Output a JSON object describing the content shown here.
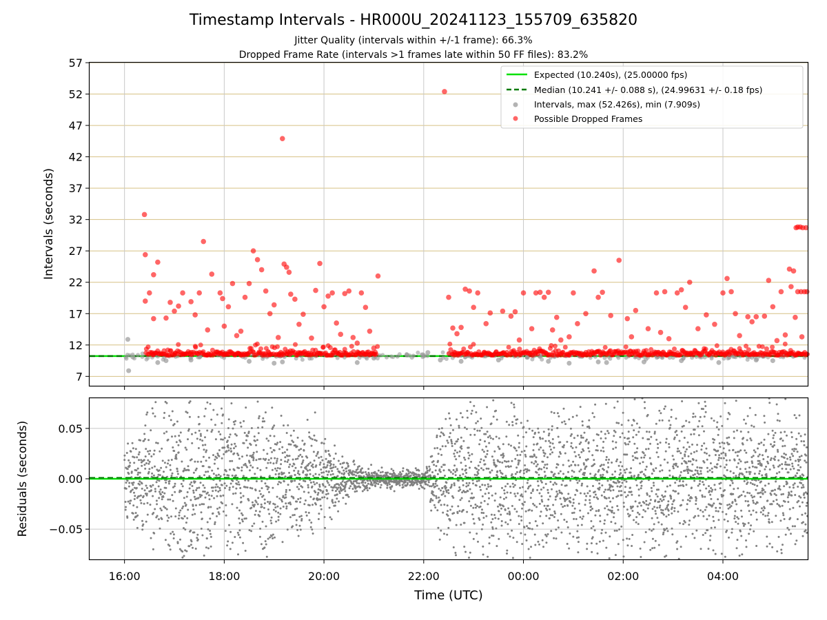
{
  "title": "Timestamp Intervals - HR000U_20241123_155709_635820",
  "subtitle_1": "Jitter Quality (intervals within +/-1 frame): 66.3%",
  "subtitle_2": "Dropped Frame Rate (intervals >1 frames late within 50 FF files): 83.2%",
  "colors": {
    "expected": "#00e000",
    "median": "#007a00",
    "intervals": "#999999",
    "dropped": "#ff0000",
    "residuals": "#808080",
    "hgrid_top": "#d6c084",
    "grid": "#c8c8c8"
  },
  "chart_data": [
    {
      "type": "scatter",
      "name": "top-panel",
      "ylabel": "Intervals (seconds)",
      "ylim": [
        5.5,
        57
      ],
      "yticks": [
        "7",
        "12",
        "17",
        "22",
        "27",
        "32",
        "37",
        "42",
        "47",
        "52",
        "57"
      ],
      "xlim": [
        "15:18",
        "05:42"
      ],
      "xticks": [
        "16:00",
        "18:00",
        "20:00",
        "22:00",
        "00:00",
        "02:00",
        "04:00"
      ],
      "grid": true,
      "legend_position": "top-right",
      "legend": [
        "Expected (10.240s), (25.00000 fps)",
        "Median (10.241 +/- 0.088 s), (24.99631 +/- 0.18 fps)",
        "Intervals, max (52.426s), min (7.909s)",
        "Possible Dropped Frames"
      ],
      "expected_interval": 10.24,
      "median_interval": 10.241,
      "interval_points": [
        [
          "16:04",
          12.9
        ],
        [
          "16:05",
          7.9
        ],
        [
          "16:10",
          10.1
        ],
        [
          "16:40",
          9.2
        ],
        [
          "16:50",
          9.5
        ],
        [
          "17:20",
          9.6
        ],
        [
          "18:30",
          9.4
        ],
        [
          "19:00",
          9.1
        ],
        [
          "19:10",
          9.3
        ],
        [
          "20:40",
          9.2
        ],
        [
          "21:00",
          9.9
        ],
        [
          "21:40",
          10.4
        ],
        [
          "22:05",
          10.8
        ],
        [
          "22:20",
          9.6
        ],
        [
          "22:45",
          9.4
        ],
        [
          "23:30",
          9.6
        ],
        [
          "00:30",
          9.4
        ],
        [
          "00:55",
          9.1
        ],
        [
          "01:30",
          9.3
        ],
        [
          "01:40",
          9.2
        ],
        [
          "02:25",
          9.3
        ],
        [
          "03:10",
          9.5
        ],
        [
          "03:55",
          9.2
        ],
        [
          "04:40",
          9.6
        ],
        [
          "05:00",
          9.5
        ]
      ],
      "dropped_points": [
        [
          "16:24",
          32.8
        ],
        [
          "16:25",
          26.4
        ],
        [
          "16:25",
          19.0
        ],
        [
          "16:30",
          20.3
        ],
        [
          "16:35",
          23.2
        ],
        [
          "16:40",
          25.2
        ],
        [
          "16:35",
          16.2
        ],
        [
          "16:50",
          16.3
        ],
        [
          "16:55",
          18.8
        ],
        [
          "17:00",
          17.4
        ],
        [
          "17:05",
          18.2
        ],
        [
          "17:10",
          20.3
        ],
        [
          "17:20",
          18.9
        ],
        [
          "17:25",
          16.8
        ],
        [
          "17:30",
          20.3
        ],
        [
          "17:35",
          28.5
        ],
        [
          "17:40",
          14.4
        ],
        [
          "17:45",
          23.3
        ],
        [
          "17:55",
          20.3
        ],
        [
          "17:58",
          19.4
        ],
        [
          "18:00",
          15.0
        ],
        [
          "18:05",
          18.1
        ],
        [
          "18:10",
          21.8
        ],
        [
          "18:15",
          13.5
        ],
        [
          "18:20",
          14.2
        ],
        [
          "18:25",
          19.6
        ],
        [
          "18:30",
          21.8
        ],
        [
          "18:35",
          27.0
        ],
        [
          "18:40",
          25.6
        ],
        [
          "18:45",
          24.0
        ],
        [
          "18:50",
          20.6
        ],
        [
          "18:55",
          17.0
        ],
        [
          "19:00",
          18.4
        ],
        [
          "19:05",
          13.2
        ],
        [
          "19:10",
          44.9
        ],
        [
          "19:12",
          24.9
        ],
        [
          "19:15",
          24.4
        ],
        [
          "19:18",
          23.6
        ],
        [
          "19:20",
          20.1
        ],
        [
          "19:25",
          19.3
        ],
        [
          "19:30",
          15.3
        ],
        [
          "19:35",
          16.9
        ],
        [
          "19:45",
          13.1
        ],
        [
          "19:50",
          20.7
        ],
        [
          "19:55",
          25.0
        ],
        [
          "20:00",
          18.1
        ],
        [
          "20:05",
          19.8
        ],
        [
          "20:10",
          20.3
        ],
        [
          "20:15",
          15.5
        ],
        [
          "20:20",
          13.7
        ],
        [
          "20:25",
          20.2
        ],
        [
          "20:30",
          20.6
        ],
        [
          "20:35",
          13.2
        ],
        [
          "20:40",
          12.3
        ],
        [
          "20:45",
          20.3
        ],
        [
          "20:50",
          18.0
        ],
        [
          "20:55",
          14.2
        ],
        [
          "21:00",
          11.5
        ],
        [
          "21:05",
          23.0
        ],
        [
          "22:25",
          52.4
        ],
        [
          "22:30",
          19.6
        ],
        [
          "22:35",
          14.7
        ],
        [
          "22:40",
          13.8
        ],
        [
          "22:45",
          14.8
        ],
        [
          "22:50",
          20.9
        ],
        [
          "22:55",
          20.6
        ],
        [
          "23:00",
          18.0
        ],
        [
          "23:05",
          20.3
        ],
        [
          "23:15",
          15.4
        ],
        [
          "23:20",
          17.1
        ],
        [
          "23:35",
          17.4
        ],
        [
          "23:45",
          16.6
        ],
        [
          "23:50",
          17.3
        ],
        [
          "23:55",
          12.8
        ],
        [
          "00:00",
          20.3
        ],
        [
          "00:10",
          14.6
        ],
        [
          "00:15",
          20.3
        ],
        [
          "00:20",
          20.4
        ],
        [
          "00:25",
          19.6
        ],
        [
          "00:30",
          20.4
        ],
        [
          "00:35",
          14.4
        ],
        [
          "00:40",
          16.4
        ],
        [
          "00:45",
          12.8
        ],
        [
          "00:55",
          13.3
        ],
        [
          "01:00",
          20.3
        ],
        [
          "01:05",
          15.4
        ],
        [
          "01:15",
          17.0
        ],
        [
          "01:25",
          23.8
        ],
        [
          "01:30",
          19.6
        ],
        [
          "01:35",
          20.4
        ],
        [
          "01:45",
          16.7
        ],
        [
          "01:55",
          25.5
        ],
        [
          "02:05",
          16.2
        ],
        [
          "02:10",
          13.3
        ],
        [
          "02:15",
          17.5
        ],
        [
          "02:30",
          14.6
        ],
        [
          "02:40",
          20.3
        ],
        [
          "02:45",
          14.0
        ],
        [
          "02:50",
          20.5
        ],
        [
          "02:55",
          13.0
        ],
        [
          "03:05",
          20.3
        ],
        [
          "03:10",
          20.8
        ],
        [
          "03:15",
          18.0
        ],
        [
          "03:20",
          22.0
        ],
        [
          "03:30",
          14.6
        ],
        [
          "03:40",
          16.8
        ],
        [
          "03:50",
          15.3
        ],
        [
          "04:00",
          20.3
        ],
        [
          "04:05",
          22.6
        ],
        [
          "04:10",
          20.5
        ],
        [
          "04:15",
          17.0
        ],
        [
          "04:20",
          13.5
        ],
        [
          "04:30",
          16.5
        ],
        [
          "04:35",
          15.7
        ],
        [
          "04:40",
          16.5
        ],
        [
          "04:50",
          16.6
        ],
        [
          "04:55",
          22.3
        ],
        [
          "05:00",
          18.1
        ],
        [
          "05:05",
          12.7
        ],
        [
          "05:10",
          20.5
        ],
        [
          "05:15",
          13.6
        ],
        [
          "05:20",
          24.1
        ],
        [
          "05:22",
          21.3
        ],
        [
          "05:25",
          23.8
        ],
        [
          "05:27",
          16.4
        ],
        [
          "05:28",
          30.7
        ],
        [
          "05:30",
          30.8
        ],
        [
          "05:33",
          30.8
        ],
        [
          "05:36",
          30.7
        ],
        [
          "05:40",
          30.7
        ],
        [
          "05:30",
          20.5
        ],
        [
          "05:34",
          20.5
        ],
        [
          "05:38",
          20.5
        ],
        [
          "05:41",
          20.5
        ],
        [
          "05:35",
          13.3
        ]
      ]
    },
    {
      "type": "scatter",
      "name": "bottom-panel",
      "xlabel": "Time (UTC)",
      "ylabel": "Residuals (seconds)",
      "ylim": [
        -0.08,
        0.08
      ],
      "yticks": [
        "−0.05",
        "0.00",
        "0.05"
      ],
      "xlim": [
        "15:18",
        "05:42"
      ],
      "xticks": [
        "16:00",
        "18:00",
        "20:00",
        "22:00",
        "00:00",
        "02:00",
        "04:00"
      ],
      "grid": true,
      "expected_residual": 0.0,
      "median_residual": 0.001,
      "residual_spread": [
        [
          "16:00",
          0.03
        ],
        [
          "16:30",
          0.06
        ],
        [
          "17:00",
          0.07
        ],
        [
          "18:00",
          0.07
        ],
        [
          "19:00",
          0.06
        ],
        [
          "20:00",
          0.04
        ],
        [
          "20:30",
          0.015
        ],
        [
          "21:00",
          0.008
        ],
        [
          "22:00",
          0.008
        ],
        [
          "22:30",
          0.06
        ],
        [
          "00:00",
          0.07
        ],
        [
          "02:00",
          0.07
        ],
        [
          "04:00",
          0.07
        ],
        [
          "05:40",
          0.06
        ]
      ]
    }
  ]
}
